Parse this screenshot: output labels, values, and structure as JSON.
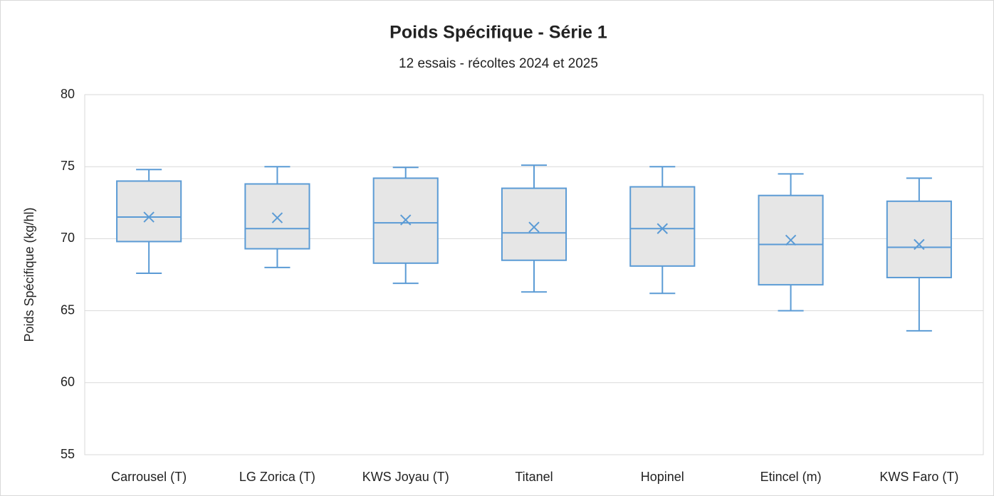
{
  "chart_data": {
    "type": "box",
    "title": "Poids Spécifique - Série 1",
    "subtitle": "12 essais - récoltes 2024 et 2025",
    "y_label": "Poids Spécifique (kg/hl)",
    "categories": [
      "Carrousel (T)",
      "LG Zorica (T)",
      "KWS Joyau (T)",
      "Titanel",
      "Hopinel",
      "Etincel (m)",
      "KWS Faro (T)"
    ],
    "min": [
      67.6,
      68.0,
      66.9,
      66.3,
      66.2,
      65.0,
      63.6
    ],
    "q1": [
      69.8,
      69.3,
      68.3,
      68.5,
      68.1,
      66.8,
      67.3
    ],
    "median": [
      71.5,
      70.7,
      71.1,
      70.4,
      70.7,
      69.6,
      69.4
    ],
    "q3": [
      74.0,
      73.8,
      74.2,
      73.5,
      73.6,
      73.0,
      72.6
    ],
    "max": [
      74.8,
      75.0,
      74.95,
      75.1,
      75.0,
      74.5,
      74.2
    ],
    "mean": [
      71.5,
      71.45,
      71.3,
      70.8,
      70.7,
      69.9,
      69.6
    ],
    "color": "#5b9bd5",
    "box_fill": "#e6e6e6",
    "ylim": [
      55,
      80
    ],
    "yticks": [
      55,
      60,
      65,
      70,
      75,
      80
    ],
    "grid": true
  }
}
